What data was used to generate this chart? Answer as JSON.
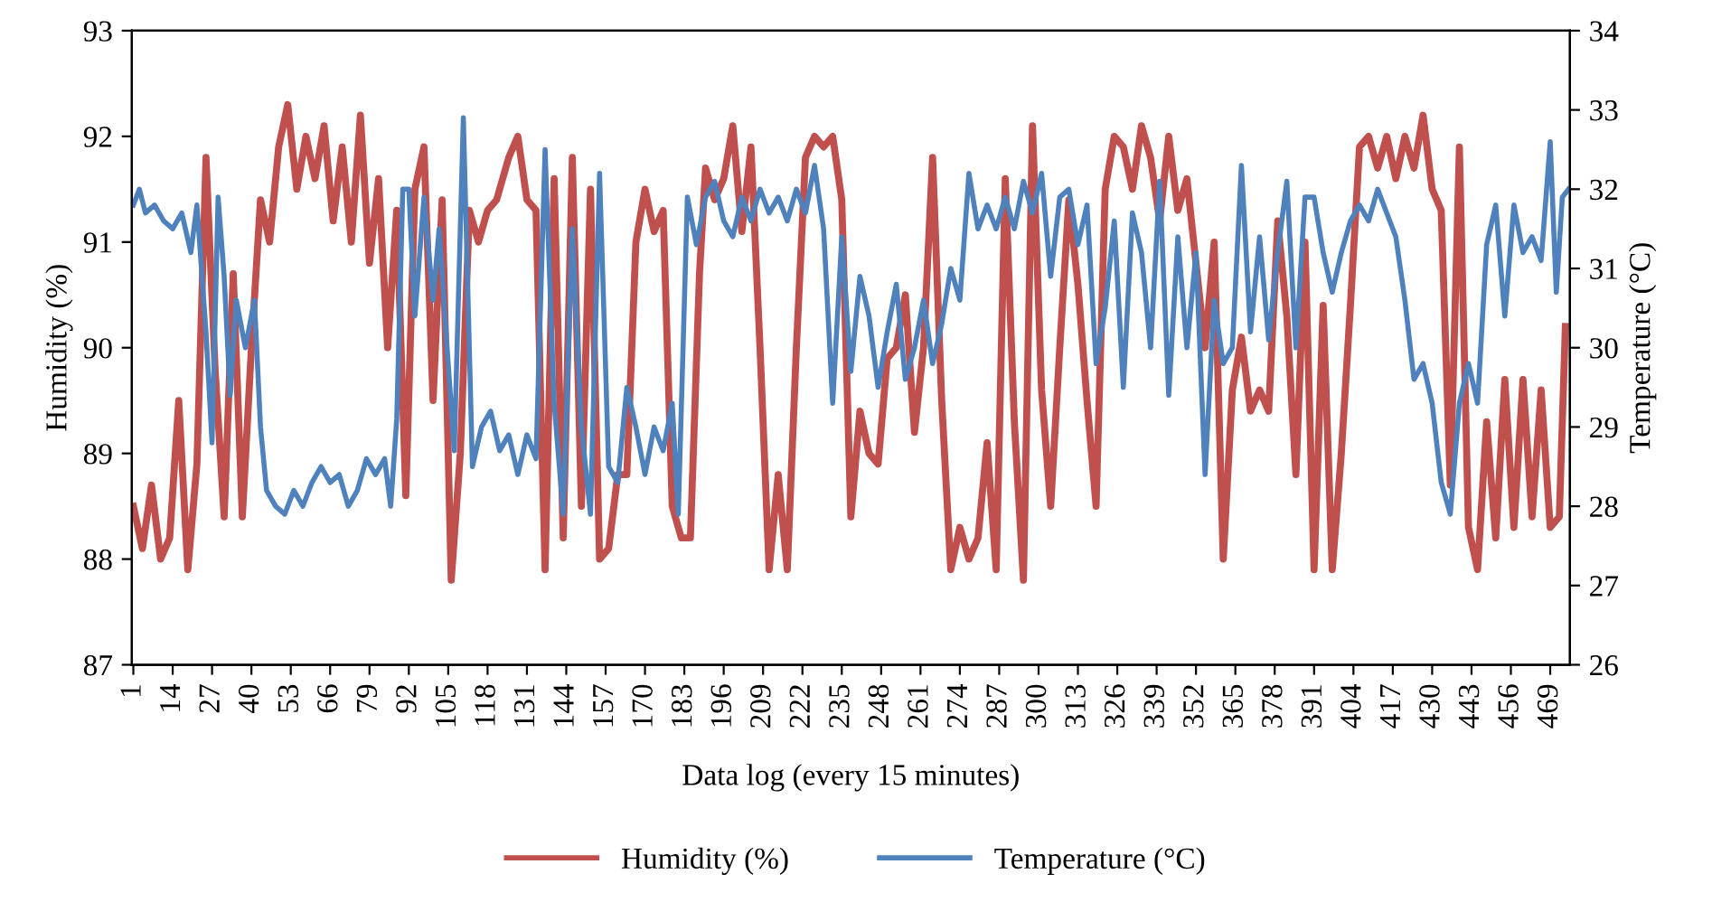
{
  "chart_data": {
    "type": "line",
    "xlabel": "Data log (every 15 minutes)",
    "ylabel": "Humidity (%)",
    "y2label": "Temperature (°C)",
    "xlim": [
      0.5,
      475.5
    ],
    "xticks": [
      1,
      14,
      27,
      40,
      53,
      66,
      79,
      92,
      105,
      118,
      131,
      144,
      157,
      170,
      183,
      196,
      209,
      222,
      235,
      248,
      261,
      274,
      287,
      300,
      313,
      326,
      339,
      352,
      365,
      378,
      391,
      404,
      417,
      430,
      443,
      456,
      469
    ],
    "ylim": [
      87,
      93
    ],
    "yticks": [
      87,
      88,
      89,
      90,
      91,
      92,
      93
    ],
    "y2lim": [
      26,
      34
    ],
    "y2ticks": [
      26,
      27,
      28,
      29,
      30,
      31,
      32,
      33,
      34
    ],
    "grid": false,
    "legend": "bottom",
    "marker": "none",
    "line_style": "solid",
    "series": [
      {
        "name": "Humidity (%)",
        "color": "#c0504d",
        "x": [
          1,
          4,
          7,
          10,
          13,
          16,
          19,
          22,
          25,
          28,
          31,
          34,
          37,
          40,
          43,
          46,
          49,
          52,
          55,
          58,
          61,
          64,
          67,
          70,
          73,
          76,
          79,
          82,
          85,
          88,
          91,
          94,
          97,
          100,
          103,
          106,
          109,
          112,
          115,
          118,
          121,
          125,
          128,
          131,
          134,
          137,
          140,
          143,
          146,
          149,
          152,
          155,
          158,
          161,
          164,
          167,
          170,
          173,
          176,
          179,
          182,
          185,
          188,
          190,
          193,
          196,
          199,
          202,
          205,
          208,
          211,
          214,
          217,
          220,
          223,
          226,
          229,
          232,
          235,
          238,
          241,
          244,
          247,
          250,
          253,
          256,
          259,
          262,
          265,
          268,
          271,
          274,
          277,
          280,
          283,
          286,
          289,
          292,
          295,
          298,
          301,
          304,
          307,
          310,
          313,
          316,
          319,
          322,
          325,
          328,
          331,
          334,
          337,
          340,
          343,
          346,
          349,
          352,
          355,
          358,
          361,
          364,
          367,
          370,
          373,
          376,
          379,
          382,
          385,
          388,
          391,
          394,
          397,
          400,
          403,
          406,
          409,
          412,
          415,
          418,
          421,
          424,
          427,
          430,
          433,
          436,
          439,
          442,
          445,
          448,
          451,
          454,
          457,
          460,
          463,
          466,
          469,
          472,
          474
        ],
        "values": [
          88.5,
          88.1,
          88.7,
          88.0,
          88.2,
          89.5,
          87.9,
          88.9,
          91.8,
          89.8,
          88.4,
          90.7,
          88.4,
          90.0,
          91.4,
          91.0,
          91.9,
          92.3,
          91.5,
          92.0,
          91.6,
          92.1,
          91.2,
          91.9,
          91.0,
          92.2,
          90.8,
          91.6,
          90.0,
          91.3,
          88.6,
          91.5,
          91.9,
          89.5,
          91.4,
          87.8,
          89.0,
          91.3,
          91.0,
          91.3,
          91.4,
          91.8,
          92.0,
          91.4,
          91.3,
          87.9,
          91.6,
          88.2,
          91.8,
          88.5,
          91.5,
          88.0,
          88.1,
          88.8,
          88.8,
          91.0,
          91.5,
          91.1,
          91.3,
          88.5,
          88.2,
          88.2,
          90.7,
          91.7,
          91.4,
          91.6,
          92.1,
          91.1,
          91.9,
          90.0,
          87.9,
          88.8,
          87.9,
          90.0,
          91.8,
          92.0,
          91.9,
          92.0,
          91.4,
          88.4,
          89.4,
          89.0,
          88.9,
          89.9,
          90.0,
          90.5,
          89.2,
          90.0,
          91.8,
          89.5,
          87.9,
          88.3,
          88.0,
          88.2,
          89.1,
          87.9,
          91.6,
          89.3,
          87.8,
          92.1,
          89.6,
          88.5,
          90.0,
          91.4,
          90.6,
          89.5,
          88.5,
          91.5,
          92.0,
          91.9,
          91.5,
          92.1,
          91.8,
          91.2,
          92.0,
          91.3,
          91.6,
          90.8,
          90.0,
          91.0,
          88.0,
          89.6,
          90.1,
          89.4,
          89.6,
          89.4,
          91.2,
          90.3,
          88.8,
          91.0,
          87.9,
          90.4,
          87.9,
          89.0,
          90.4,
          91.9,
          92.0,
          91.7,
          92.0,
          91.6,
          92.0,
          91.7,
          92.2,
          91.5,
          91.3,
          88.7,
          91.9,
          88.3,
          87.9,
          89.3,
          88.2,
          89.7,
          88.3,
          89.7,
          88.4,
          89.6,
          88.3,
          88.4,
          90.2
        ]
      },
      {
        "name": "Temperature (°C)",
        "color": "#4f81bd",
        "axis": "y2",
        "x": [
          1,
          3,
          5,
          8,
          11,
          14,
          17,
          20,
          22,
          25,
          27,
          29,
          31,
          33,
          35,
          38,
          41,
          43,
          45,
          48,
          51,
          54,
          57,
          60,
          63,
          66,
          69,
          72,
          75,
          78,
          81,
          84,
          86,
          88,
          90,
          92,
          94,
          97,
          100,
          102,
          105,
          107,
          110,
          113,
          116,
          119,
          122,
          125,
          128,
          131,
          134,
          137,
          140,
          143,
          146,
          149,
          152,
          155,
          158,
          161,
          164,
          167,
          170,
          173,
          176,
          179,
          181,
          184,
          187,
          190,
          193,
          196,
          199,
          202,
          205,
          208,
          211,
          214,
          217,
          220,
          223,
          226,
          229,
          232,
          235,
          238,
          241,
          244,
          247,
          250,
          253,
          256,
          259,
          262,
          265,
          268,
          271,
          274,
          277,
          280,
          283,
          286,
          289,
          292,
          295,
          298,
          301,
          304,
          307,
          310,
          313,
          316,
          319,
          322,
          325,
          328,
          331,
          334,
          337,
          340,
          343,
          346,
          349,
          352,
          355,
          358,
          361,
          364,
          367,
          370,
          373,
          376,
          379,
          382,
          385,
          388,
          391,
          394,
          397,
          400,
          403,
          406,
          409,
          412,
          415,
          418,
          421,
          424,
          427,
          430,
          433,
          436,
          439,
          442,
          445,
          448,
          451,
          454,
          457,
          460,
          463,
          466,
          469,
          471,
          473,
          475
        ],
        "values": [
          31.8,
          32.0,
          31.7,
          31.8,
          31.6,
          31.5,
          31.7,
          31.2,
          31.8,
          30.2,
          28.8,
          31.9,
          30.9,
          29.4,
          30.6,
          30.0,
          30.6,
          29.0,
          28.2,
          28.0,
          27.9,
          28.2,
          28.0,
          28.3,
          28.5,
          28.3,
          28.4,
          28.0,
          28.2,
          28.6,
          28.4,
          28.6,
          28.0,
          29.1,
          32.0,
          32.0,
          30.4,
          31.9,
          30.6,
          31.5,
          29.8,
          28.7,
          32.9,
          28.5,
          29.0,
          29.2,
          28.7,
          28.9,
          28.4,
          28.9,
          28.6,
          32.5,
          29.3,
          27.9,
          31.5,
          29.0,
          27.9,
          32.2,
          28.5,
          28.3,
          29.5,
          29.0,
          28.4,
          29.0,
          28.7,
          29.3,
          27.9,
          31.9,
          31.3,
          31.9,
          32.1,
          31.6,
          31.4,
          31.9,
          31.6,
          32.0,
          31.7,
          31.9,
          31.6,
          32.0,
          31.7,
          32.3,
          31.5,
          29.3,
          31.4,
          29.7,
          30.9,
          30.4,
          29.5,
          30.2,
          30.8,
          29.6,
          30.0,
          30.6,
          29.8,
          30.3,
          31.0,
          30.6,
          32.2,
          31.5,
          31.8,
          31.5,
          31.9,
          31.5,
          32.1,
          31.7,
          32.2,
          30.9,
          31.9,
          32.0,
          31.3,
          31.8,
          29.8,
          30.5,
          31.6,
          29.5,
          31.7,
          31.2,
          30.0,
          32.1,
          29.4,
          31.4,
          30.0,
          31.2,
          28.4,
          30.6,
          29.8,
          30.0,
          32.3,
          30.2,
          31.4,
          30.1,
          31.2,
          32.1,
          30.0,
          31.9,
          31.9,
          31.2,
          30.7,
          31.2,
          31.6,
          31.8,
          31.6,
          32.0,
          31.7,
          31.4,
          30.6,
          29.6,
          29.8,
          29.3,
          28.3,
          27.9,
          29.3,
          29.8,
          29.3,
          31.3,
          31.8,
          30.4,
          31.8,
          31.2,
          31.4,
          31.1,
          32.6,
          30.7,
          31.9,
          32.0
        ]
      }
    ]
  }
}
